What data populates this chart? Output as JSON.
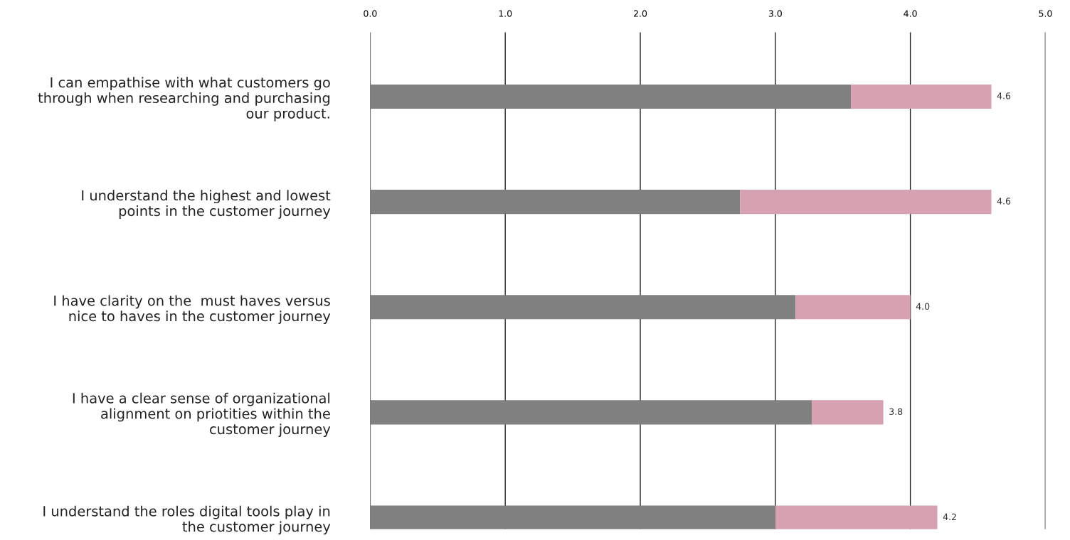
{
  "chart_data": {
    "type": "bar",
    "orientation": "horizontal",
    "stacked": true,
    "categories": [
      "I can empathise with what customers go\nthrough when researching and purchasing\nour product.",
      "I understand the highest and lowest\npoints in the customer journey",
      "I have clarity on the  must haves versus\nnice to haves in the customer journey",
      "I have a clear sense of organizational\nalignment on priotities within the\ncustomer journey",
      "I understand the roles digital tools play in\nthe customer journey"
    ],
    "series": [
      {
        "color": "#808080",
        "values": [
          3.56,
          2.74,
          3.15,
          3.27,
          3.0
        ]
      },
      {
        "color": "#d6a1b0",
        "values": [
          1.04,
          1.86,
          0.85,
          0.53,
          1.2
        ]
      }
    ],
    "totals": [
      "4.6",
      "4.6",
      "4.0",
      "3.8",
      "4.2"
    ],
    "xlim": [
      0,
      5
    ],
    "xticks": [
      {
        "value": 0,
        "label": "0.0"
      },
      {
        "value": 1,
        "label": "1.0"
      },
      {
        "value": 2,
        "label": "2.0"
      },
      {
        "value": 3,
        "label": "3.0"
      },
      {
        "value": 4,
        "label": "4.0"
      },
      {
        "value": 5,
        "label": "5.0"
      }
    ],
    "grid": "x"
  }
}
